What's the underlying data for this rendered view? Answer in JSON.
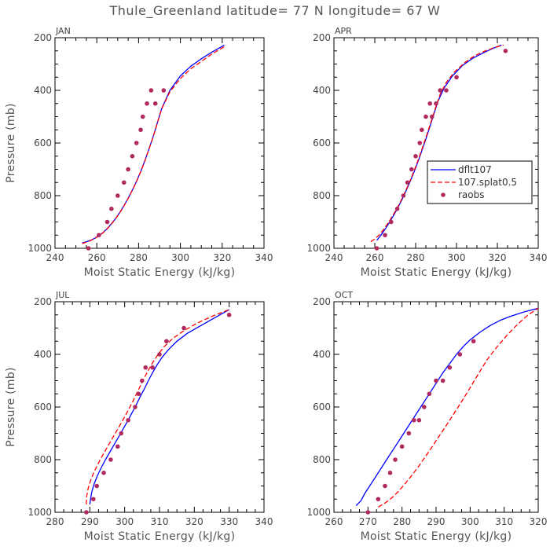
{
  "colors": {
    "model": "#0000ff",
    "experiment": "#ff0000",
    "obs": "#b02a60"
  },
  "chart_data": {
    "type": "line",
    "title": "Thule_Greenland  latitude= 77 N longitude= 67 W",
    "xlabel": "Moist Static Energy (kJ/kg)",
    "ylabel": "Pressure (mb)",
    "legend": {
      "placement": "right-middle of APR panel",
      "entries": [
        "dflt107",
        "107.splat0.5",
        "raobs"
      ]
    },
    "panels": [
      {
        "name": "JAN",
        "xlim": [
          240,
          340
        ],
        "xticks": [
          240,
          260,
          280,
          300,
          320,
          340
        ],
        "ylim": [
          200,
          1000
        ],
        "yticks": [
          200,
          400,
          600,
          800,
          1000
        ],
        "series": [
          {
            "name": "dflt107",
            "style": "solid",
            "x": [
              253,
              255,
              257,
              259,
              261,
              263,
              265,
              267,
              269,
              271,
              273,
              275,
              277,
              279,
              281,
              283,
              285,
              287,
              289,
              291,
              295,
              300,
              305,
              310,
              315,
              321
            ],
            "y": [
              980,
              975,
              970,
              962,
              952,
              940,
              925,
              907,
              887,
              864,
              838,
              810,
              779,
              746,
              708,
              667,
              622,
              575,
              523,
              470,
              400,
              345,
              308,
              280,
              255,
              228
            ]
          },
          {
            "name": "107.splat0.5",
            "style": "dashed",
            "x": [
              253,
              255,
              257,
              259,
              261,
              263,
              265,
              267,
              269,
              271,
              273,
              275,
              277,
              279,
              281,
              283,
              285,
              287,
              289,
              291,
              295,
              300,
              305,
              310,
              315,
              322
            ],
            "y": [
              982,
              977,
              971,
              963,
              953,
              941,
              926,
              908,
              888,
              865,
              839,
              811,
              780,
              747,
              709,
              668,
              623,
              576,
              524,
              471,
              405,
              355,
              318,
              290,
              262,
              230
            ]
          },
          {
            "name": "raobs",
            "style": "dots",
            "x": [
              256,
              261,
              265,
              267,
              270,
              273,
              275,
              277,
              279,
              281,
              282,
              284,
              286,
              288,
              292
            ],
            "y": [
              1000,
              950,
              900,
              850,
              800,
              750,
              700,
              650,
              600,
              550,
              500,
              450,
              400,
              450,
              400
            ]
          }
        ]
      },
      {
        "name": "APR",
        "xlim": [
          240,
          340
        ],
        "xticks": [
          240,
          260,
          280,
          300,
          320,
          340
        ],
        "ylim": [
          200,
          1000
        ],
        "yticks": [
          200,
          400,
          600,
          800,
          1000
        ],
        "series": [
          {
            "name": "dflt107",
            "style": "solid",
            "x": [
              261,
              263,
              265,
              267,
              269,
              271,
              273,
              275,
              277,
              279,
              281,
              283,
              285,
              287,
              289,
              291,
              294,
              298,
              303,
              308,
              313,
              318,
              322
            ],
            "y": [
              970,
              950,
              928,
              904,
              878,
              850,
              820,
              787,
              752,
              714,
              674,
              630,
              585,
              537,
              488,
              440,
              390,
              345,
              305,
              278,
              258,
              240,
              228
            ]
          },
          {
            "name": "107.splat0.5",
            "style": "dashed",
            "x": [
              258,
              260,
              262,
              264,
              266,
              268,
              270,
              272,
              274,
              276,
              278,
              280,
              282,
              284,
              286,
              288,
              290,
              292,
              295,
              299,
              304,
              309,
              314,
              319,
              323
            ],
            "y": [
              975,
              965,
              950,
              932,
              910,
              886,
              860,
              832,
              800,
              766,
              730,
              690,
              648,
              603,
              556,
              508,
              460,
              415,
              370,
              330,
              295,
              268,
              250,
              236,
              228
            ]
          },
          {
            "name": "raobs",
            "style": "dots",
            "x": [
              261,
              265,
              268,
              271,
              274,
              276,
              278,
              280,
              282,
              283,
              285,
              287,
              288,
              290,
              292,
              295,
              300,
              324
            ],
            "y": [
              1000,
              950,
              900,
              850,
              800,
              750,
              700,
              650,
              600,
              550,
              500,
              450,
              500,
              450,
              400,
              400,
              350,
              250
            ]
          }
        ]
      },
      {
        "name": "JUL",
        "xlim": [
          280,
          340
        ],
        "xticks": [
          280,
          290,
          300,
          310,
          320,
          330,
          340
        ],
        "ylim": [
          200,
          1000
        ],
        "yticks": [
          200,
          400,
          600,
          800,
          1000
        ],
        "series": [
          {
            "name": "dflt107",
            "style": "solid",
            "x": [
              290,
              290.2,
              290.6,
              291.3,
              292.2,
              293.3,
              294.5,
              295.8,
              297.1,
              298.4,
              299.7,
              301,
              302.2,
              303.4,
              304.5,
              305.7,
              306.8,
              308,
              309.3,
              310.8,
              312.7,
              315,
              318,
              322,
              326,
              330
            ],
            "y": [
              970,
              950,
              920,
              890,
              860,
              830,
              800,
              770,
              740,
              710,
              680,
              650,
              620,
              590,
              560,
              530,
              500,
              470,
              440,
              410,
              380,
              350,
              320,
              290,
              260,
              230
            ]
          },
          {
            "name": "107.splat0.5",
            "style": "dashed",
            "x": [
              289,
              289.1,
              289.5,
              290.2,
              291.1,
              292.2,
              293.4,
              294.7,
              296,
              297.3,
              298.6,
              299.9,
              301.1,
              302.3,
              303.4,
              304.5,
              305.6,
              306.8,
              308.1,
              309.6,
              311.4,
              313.8,
              317,
              321,
              326,
              330
            ],
            "y": [
              970,
              940,
              910,
              880,
              850,
              820,
              790,
              760,
              730,
              700,
              670,
              640,
              610,
              580,
              550,
              520,
              490,
              460,
              430,
              400,
              370,
              340,
              310,
              280,
              250,
              230
            ]
          },
          {
            "name": "raobs",
            "style": "dots",
            "x": [
              289,
              291,
              292,
              294,
              296,
              298,
              299,
              301,
              303,
              304,
              305,
              306,
              308,
              310,
              312,
              317,
              330
            ],
            "y": [
              1000,
              950,
              900,
              850,
              800,
              750,
              700,
              650,
              600,
              550,
              500,
              450,
              450,
              400,
              350,
              300,
              250
            ]
          }
        ]
      },
      {
        "name": "OCT",
        "xlim": [
          260,
          320
        ],
        "xticks": [
          260,
          270,
          280,
          290,
          300,
          310,
          320
        ],
        "ylim": [
          200,
          1000
        ],
        "yticks": [
          200,
          400,
          600,
          800,
          1000
        ],
        "series": [
          {
            "name": "dflt107",
            "style": "solid",
            "x": [
              266.5,
              268,
              269,
              270.5,
              272,
              274,
              276,
              278,
              280,
              282,
              284,
              286,
              288,
              290,
              292,
              294,
              296,
              298,
              300,
              303,
              306,
              309,
              312,
              316,
              320
            ],
            "y": [
              975,
              955,
              930,
              900,
              870,
              830,
              790,
              750,
              710,
              670,
              630,
              590,
              550,
              510,
              470,
              435,
              400,
              370,
              345,
              315,
              290,
              270,
              255,
              238,
              225
            ]
          },
          {
            "name": "107.splat0.5",
            "style": "dashed",
            "x": [
              273,
              275,
              277,
              279,
              281,
              283,
              285,
              287,
              289,
              291,
              293,
              295,
              297,
              299,
              301,
              303,
              305,
              308,
              311,
              314,
              317,
              320
            ],
            "y": [
              980,
              965,
              945,
              920,
              890,
              858,
              823,
              786,
              748,
              709,
              670,
              630,
              590,
              548,
              505,
              462,
              420,
              370,
              325,
              285,
              250,
              225
            ]
          },
          {
            "name": "raobs",
            "style": "dots",
            "x": [
              270,
              273,
              275,
              276.5,
              278,
              280,
              282,
              283.5,
              285,
              286.5,
              288,
              290,
              292,
              294,
              297,
              301
            ],
            "y": [
              1000,
              950,
              900,
              850,
              800,
              750,
              700,
              650,
              650,
              600,
              550,
              500,
              500,
              450,
              400,
              350
            ]
          }
        ]
      }
    ]
  }
}
